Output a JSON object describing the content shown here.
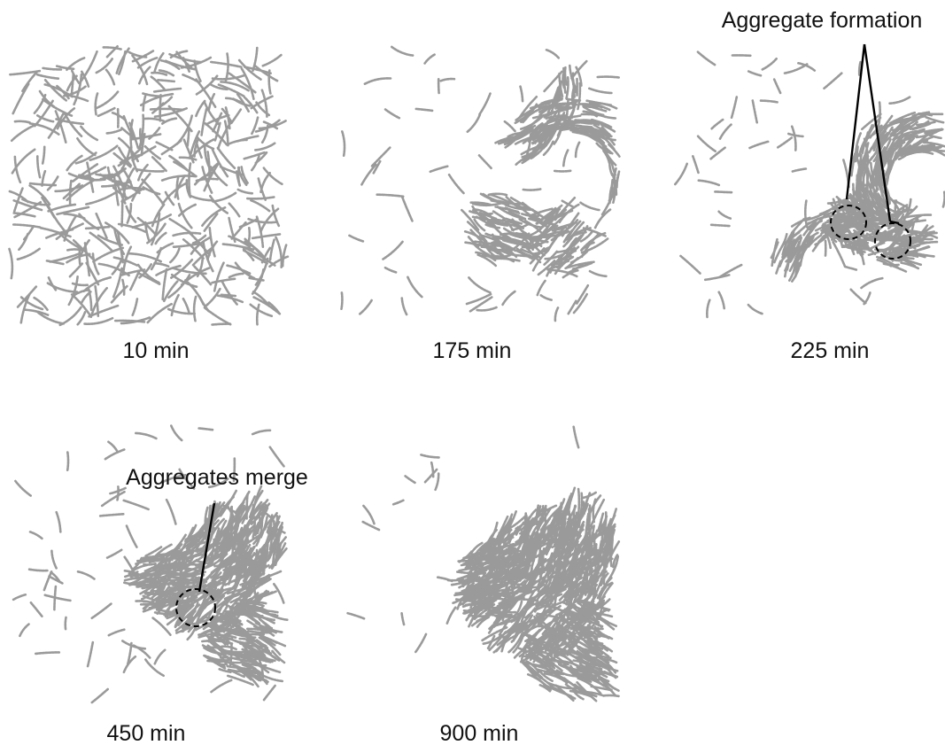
{
  "panels": [
    {
      "id": "p10",
      "label": "10 min"
    },
    {
      "id": "p175",
      "label": "175 min"
    },
    {
      "id": "p225",
      "label": "225 min"
    },
    {
      "id": "p450",
      "label": "450 min"
    },
    {
      "id": "p900",
      "label": "900 min"
    }
  ],
  "annotations": {
    "aggregate_formation": "Aggregate formation",
    "aggregates_merge": "Aggregates merge"
  },
  "colors": {
    "cells": "#9a9a9a",
    "text": "#111111",
    "background": "#ffffff"
  }
}
